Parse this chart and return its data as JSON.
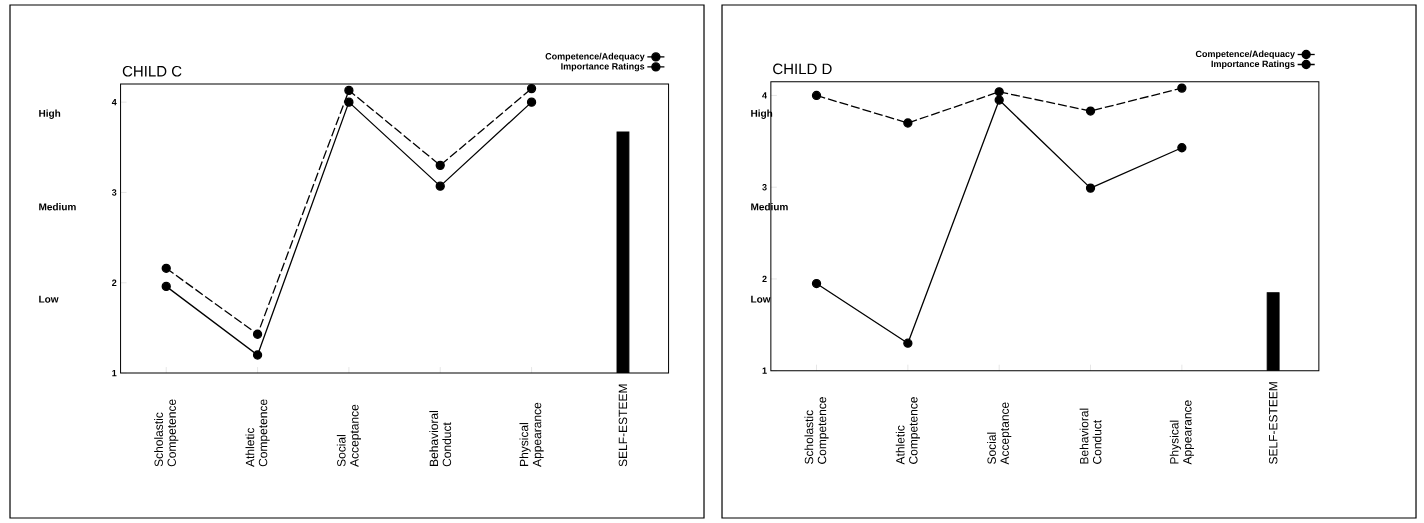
{
  "chart_data": [
    {
      "type": "line",
      "title": "CHILD C",
      "categories": [
        "Scholastic Competence",
        "Athletic Competence",
        "Social Acceptance",
        "Behavioral Conduct",
        "Physical Appearance",
        "SELF-ESTEEM"
      ],
      "ylim": [
        1,
        4.2
      ],
      "yticks": [
        1,
        2,
        3,
        4
      ],
      "annotations": [
        "High",
        "Medium",
        "Low"
      ],
      "legend": "top right",
      "marker": "circle",
      "series": [
        {
          "name": "Competence/Adequacy",
          "color": "#000000",
          "line_style": "solid",
          "values": [
            1.96,
            1.2,
            4.0,
            3.07,
            4.0,
            null
          ]
        },
        {
          "name": "Importance Ratings",
          "color": "#000000",
          "line_style": "dashed",
          "values": [
            2.16,
            1.43,
            4.13,
            3.3,
            4.15,
            null
          ]
        },
        {
          "type": "bar",
          "color": "#000000",
          "values": [
            null,
            null,
            null,
            null,
            null,
            3.67
          ]
        }
      ]
    },
    {
      "type": "line",
      "title": "CHILD D",
      "categories": [
        "Scholastic Competence",
        "Athletic Competence",
        "Social Acceptance",
        "Behavioral Conduct",
        "Physical Appearance",
        "SELF-ESTEEM"
      ],
      "ylim": [
        1,
        4.15
      ],
      "yticks": [
        1,
        2,
        3,
        4
      ],
      "annotations": [
        "High",
        "Medium",
        "Low"
      ],
      "legend": "top right",
      "marker": "circle",
      "series": [
        {
          "name": "Competence/Adequacy",
          "color": "#000000",
          "line_style": "solid",
          "values": [
            1.95,
            1.3,
            3.95,
            2.99,
            3.43,
            null
          ]
        },
        {
          "name": "Importance Ratings",
          "color": "#000000",
          "line_style": "dashed",
          "values": [
            4.0,
            3.7,
            4.04,
            3.83,
            4.08,
            null
          ]
        },
        {
          "type": "bar",
          "color": "#000000",
          "values": [
            null,
            null,
            null,
            null,
            null,
            1.85
          ]
        }
      ]
    }
  ]
}
